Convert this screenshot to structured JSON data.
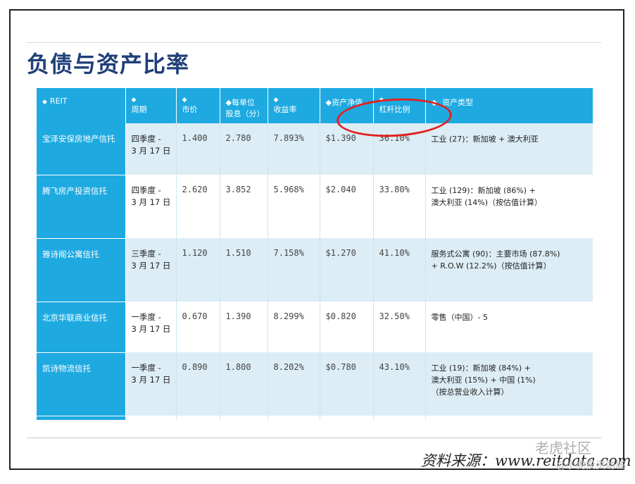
{
  "title": "负债与资产比率",
  "table": {
    "headers": [
      {
        "arrow": "◆",
        "label": "REIT"
      },
      {
        "arrow": "◆",
        "label": "周期"
      },
      {
        "arrow": "◆",
        "label": "市价"
      },
      {
        "arrow": "◆",
        "label": "每单位",
        "label2": "股息（分）"
      },
      {
        "arrow": "◆",
        "label": "收益率"
      },
      {
        "arrow": "◆",
        "label": "资产净值"
      },
      {
        "arrow": "◆",
        "label": "杠杆比例"
      },
      {
        "arrow": "◆",
        "label": "资产类型"
      }
    ],
    "rows": [
      {
        "name": "宝泽安保房地产信托",
        "period": "四季度 -",
        "date": "3 月 17 日",
        "price": "1.400",
        "dps": "2.780",
        "yield": "7.893%",
        "nav": "$1.390",
        "leverage": "36.10%",
        "type": "工业 (27)：新加坡 + 澳大利亚"
      },
      {
        "name": "腾飞房产投资信托",
        "period": "四季度 -",
        "date": "3 月 17 日",
        "price": "2.620",
        "dps": "3.852",
        "yield": "5.968%",
        "nav": "$2.040",
        "leverage": "33.80%",
        "type": "工业 (129)：新加坡 (86%) +",
        "type2": "澳大利亚 (14%)（按估值计算）"
      },
      {
        "name": "雅诗阁公寓信托",
        "period": "三季度 -",
        "date": "3 月 17 日",
        "price": "1.120",
        "dps": "1.510",
        "yield": "7.158%",
        "nav": "$1.270",
        "leverage": "41.10%",
        "type": "服务式公寓 (90)：主要市场 (87.8%)",
        "type2": "+ R.O.W (12.2%)（按估值计算）"
      },
      {
        "name": "北京华联商业信托",
        "period": "一季度 -",
        "date": "3 月 17 日",
        "price": "0.670",
        "dps": "1.390",
        "yield": "8.299%",
        "nav": "$0.820",
        "leverage": "32.50%",
        "type": "零售（中国）- 5"
      },
      {
        "name": "凯诗物流信托",
        "period": "一季度 -",
        "date": "3 月 17 日",
        "price": "0.890",
        "dps": "1.800",
        "yield": "8.202%",
        "nav": "$0.780",
        "leverage": "43.10%",
        "type": "工业 (19)：新加坡 (84%) +",
        "type2": "澳大利亚 (15%) + 中国 (1%)",
        "type3": "（按总营业收入计算）"
      }
    ]
  },
  "source": "资料来源：www.reitdata.com",
  "watermark": {
    "line1": "老虎社区",
    "line2": "@小虎投资助城"
  }
}
